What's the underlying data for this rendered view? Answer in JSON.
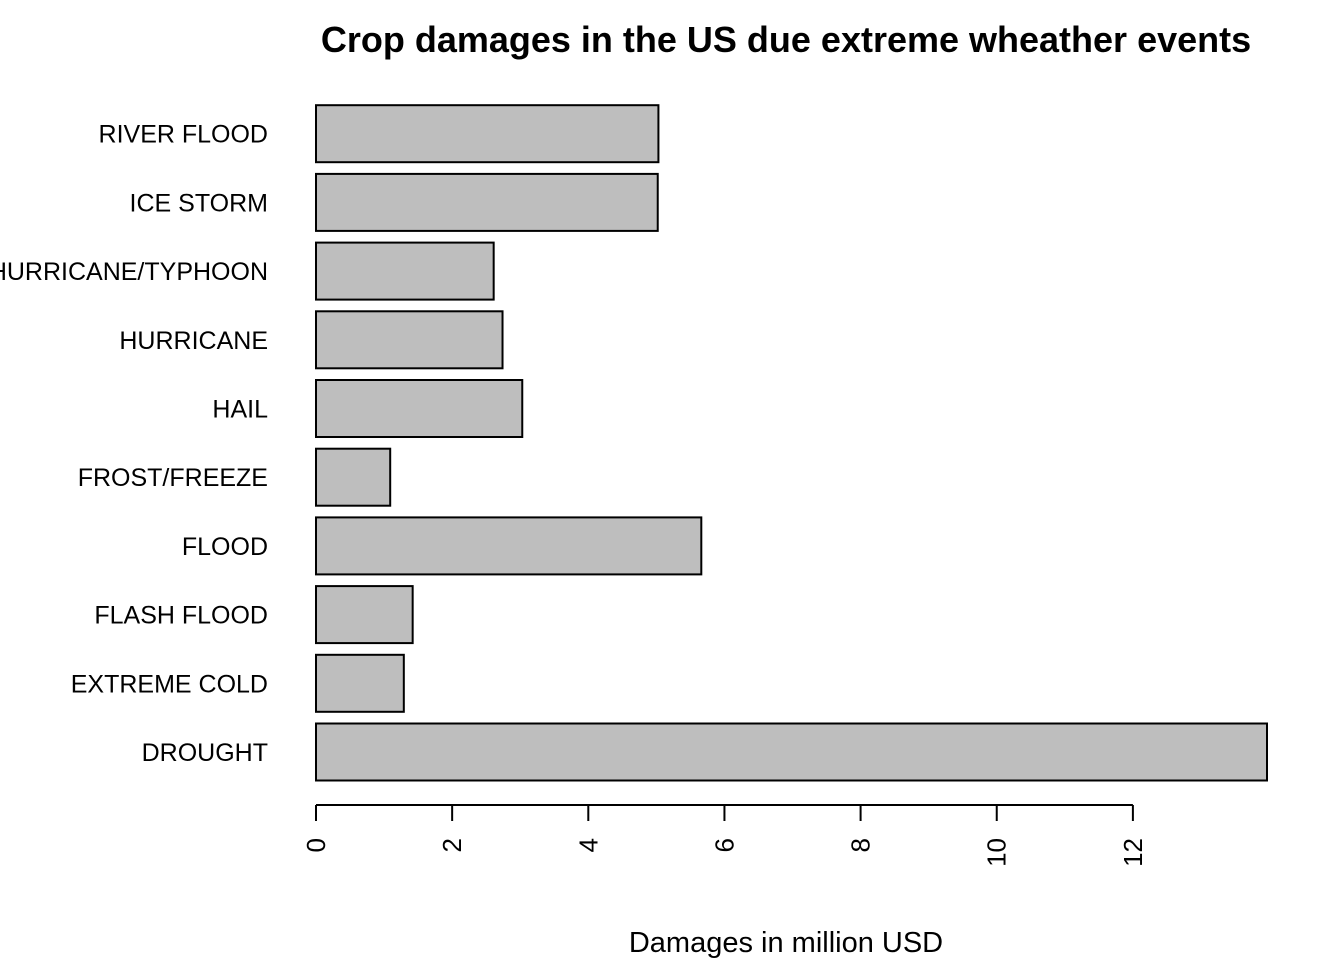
{
  "chart_data": {
    "type": "bar",
    "orientation": "horizontal",
    "title": "Crop damages in the US due extreme wheather events",
    "xlabel": "Damages in million USD",
    "ylabel": "",
    "categories": [
      "DROUGHT",
      "EXTREME COLD",
      "FLASH FLOOD",
      "FLOOD",
      "FROST/FREEZE",
      "HAIL",
      "HURRICANE",
      "HURRICANE/TYPHOON",
      "ICE STORM",
      "RIVER FLOOD"
    ],
    "values": [
      13.97,
      1.29,
      1.42,
      5.66,
      1.09,
      3.03,
      2.74,
      2.61,
      5.02,
      5.03
    ],
    "xlim": [
      0,
      13.97
    ],
    "xticks": [
      0,
      2,
      4,
      6,
      8,
      10,
      12
    ],
    "bar_color": "#bebebe",
    "bar_outline": "#000000",
    "grid": false,
    "legend": "none"
  }
}
